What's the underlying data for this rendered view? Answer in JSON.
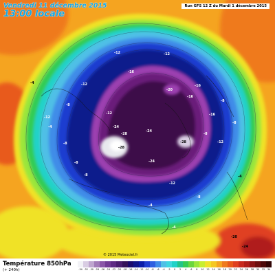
{
  "header": {
    "date_title": "Vendredi 11 décembre 2015",
    "local_time": "13:00 locale",
    "run_info": "Run GFS 12 Z du Mardi 1 décembre 2015"
  },
  "map": {
    "projection": "polar-stereographic",
    "field": "temperature-850hPa",
    "isotherm_labels": [
      {
        "id": "l1",
        "text": "-12"
      },
      {
        "id": "l2",
        "text": "-12"
      },
      {
        "id": "l3",
        "text": "-16"
      },
      {
        "id": "l4",
        "text": "-16"
      },
      {
        "id": "l5",
        "text": "-12"
      },
      {
        "id": "l6",
        "text": "-8"
      },
      {
        "id": "l7",
        "text": "-8"
      },
      {
        "id": "l8",
        "text": "-24"
      },
      {
        "id": "l9",
        "text": "-28"
      },
      {
        "id": "l10",
        "text": "-24"
      },
      {
        "id": "l11",
        "text": "-28"
      },
      {
        "id": "l12",
        "text": "-24"
      },
      {
        "id": "l13",
        "text": "-28"
      },
      {
        "id": "l14",
        "text": "-20"
      },
      {
        "id": "l15",
        "text": "-12"
      },
      {
        "id": "l16",
        "text": "-8"
      },
      {
        "id": "l17",
        "text": "-8"
      },
      {
        "id": "l18",
        "text": "-4"
      },
      {
        "id": "l19",
        "text": "-12"
      },
      {
        "id": "l20",
        "text": "-16"
      },
      {
        "id": "l21",
        "text": "-16"
      },
      {
        "id": "l22",
        "text": "-8"
      },
      {
        "id": "l23",
        "text": "-12"
      },
      {
        "id": "l24",
        "text": "-12"
      },
      {
        "id": "l25",
        "text": "-8"
      },
      {
        "id": "l26",
        "text": "-4"
      },
      {
        "id": "l27",
        "text": "-4"
      },
      {
        "id": "l28",
        "text": "-8"
      },
      {
        "id": "l29",
        "text": "-8"
      },
      {
        "id": "l30",
        "text": "-4"
      },
      {
        "id": "l31",
        "text": "-4"
      },
      {
        "id": "l32",
        "text": "-24"
      },
      {
        "id": "l33",
        "text": "-20"
      }
    ],
    "colors": {
      "deep_purple": "#3d0a4a",
      "purple": "#6a1f7a",
      "violet": "#9c3fb0",
      "navy": "#0a1a8c",
      "blue": "#1e3cd0",
      "light_blue": "#3f8ce8",
      "sky": "#4fbfe6",
      "cyan": "#20d2c8",
      "green": "#33cc55",
      "lime": "#9be63a",
      "yellow": "#f0e228",
      "orange": "#f5a420",
      "deep_orange": "#ef7a1c",
      "red": "#e04020",
      "dark_red": "#b01e1a",
      "white_core": "#e8e8ee"
    }
  },
  "copyright": "© 2015 Meteociel.fr",
  "legend": {
    "title": "Température 850hPa",
    "subtitle": "(+ 240h)",
    "ticks": [
      "-34",
      "-32",
      "-30",
      "-28",
      "-26",
      "-24",
      "-22",
      "-20",
      "-18",
      "-16",
      "-14",
      "-12",
      "-10",
      "-8",
      "-6",
      "-4",
      "-2",
      "0",
      "2",
      "4",
      "6",
      "8",
      "10",
      "12",
      "14",
      "16",
      "18",
      "20",
      "22",
      "24",
      "26",
      "28",
      "30",
      "32",
      "34"
    ],
    "scale_colors": [
      "#f2f2f6",
      "#d9cde3",
      "#bfa6cf",
      "#a27bb8",
      "#8a55a8",
      "#713a95",
      "#5e2a84",
      "#4a1d70",
      "#35125a",
      "#1a0a6e",
      "#10148a",
      "#0a1aa8",
      "#1e3cd0",
      "#2f5fe0",
      "#3f8ce8",
      "#4fbfe6",
      "#3fd6e0",
      "#20d2c8",
      "#22c48a",
      "#33cc55",
      "#6ad63e",
      "#9be63a",
      "#c8ee30",
      "#f0e228",
      "#f5c822",
      "#f5a420",
      "#ef7a1c",
      "#e85a1a",
      "#e04020",
      "#c82a1e",
      "#b01e1a",
      "#8c1414",
      "#6e0e0e",
      "#4d0808",
      "#300404"
    ]
  }
}
